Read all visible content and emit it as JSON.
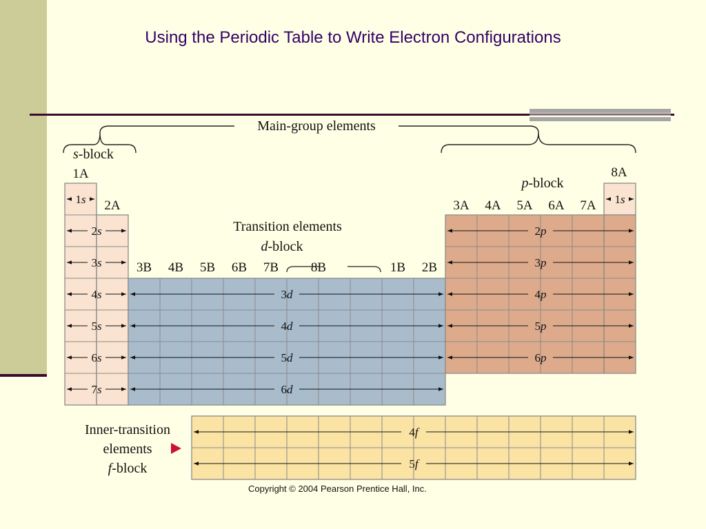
{
  "slide": {
    "title": "Using the Periodic Table to Write Electron Configurations",
    "copyright": "Copyright © 2004 Pearson Prentice Hall, Inc."
  },
  "colors": {
    "background": "#ffffe5",
    "sidebar": "#cccc99",
    "rule": "#3d0a2e",
    "title": "#330066",
    "s_block": "#fae3d0",
    "d_block": "#a9bccc",
    "p_block": "#ddab8b",
    "f_block": "#fae3a3",
    "grid": "#8a8a8a",
    "pointer": "#cc1133"
  },
  "diagram": {
    "main_group_label": "Main-group elements",
    "s_block_label": {
      "italic": "s",
      "rest": "-block"
    },
    "p_block_label": {
      "italic": "p",
      "rest": "-block"
    },
    "transition_label_1": "Transition elements",
    "transition_label_2": {
      "italic": "d",
      "rest": "-block"
    },
    "inner_transition": {
      "line1": "Inner-transition",
      "line2": "elements",
      "line3": {
        "italic": "f",
        "rest": "-block"
      }
    },
    "group_1A": "1A",
    "group_2A": "2A",
    "group_8A": "8A",
    "d_groups": [
      "3B",
      "4B",
      "5B",
      "6B",
      "7B",
      "8B",
      "1B",
      "2B"
    ],
    "p_groups": [
      "3A",
      "4A",
      "5A",
      "6A",
      "7A"
    ],
    "s_rows": [
      "1s",
      "2s",
      "3s",
      "4s",
      "5s",
      "6s",
      "7s"
    ],
    "d_rows": [
      "3d",
      "4d",
      "5d",
      "6d"
    ],
    "p_rows": [
      "2p",
      "3p",
      "4p",
      "5p",
      "6p"
    ],
    "he_label": "1s",
    "f_rows": [
      "4f",
      "5f"
    ]
  }
}
